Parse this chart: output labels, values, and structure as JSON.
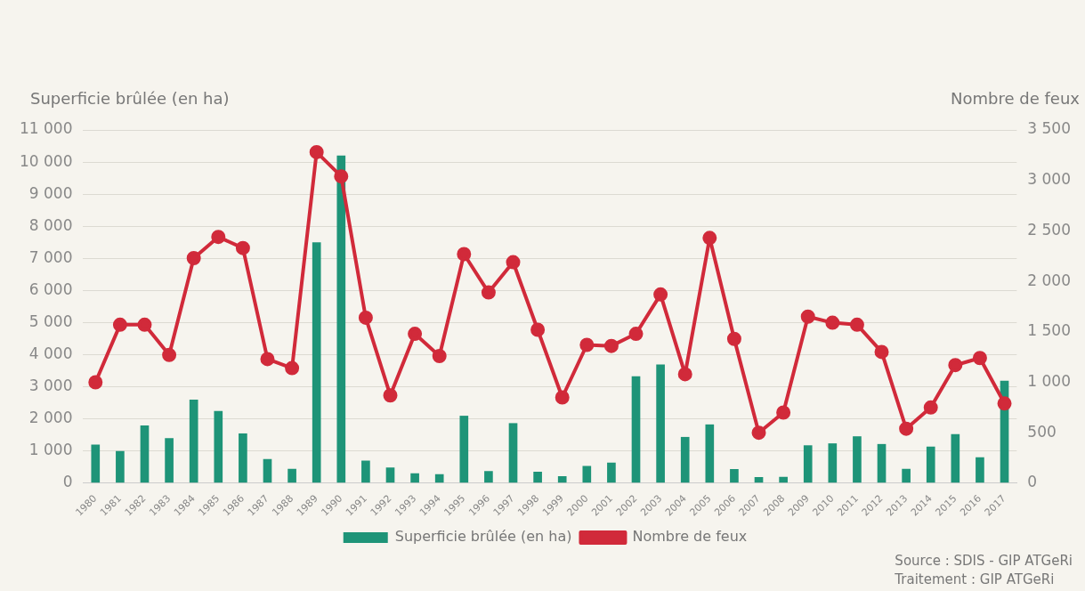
{
  "chart_data": {
    "type": "bar",
    "categories": [
      "1980",
      "1981",
      "1982",
      "1983",
      "1984",
      "1985",
      "1986",
      "1987",
      "1988",
      "1989",
      "1990",
      "1991",
      "1992",
      "1993",
      "1994",
      "1995",
      "1996",
      "1997",
      "1998",
      "1999",
      "2000",
      "2001",
      "2002",
      "2003",
      "2004",
      "2005",
      "2006",
      "2007",
      "2008",
      "2009",
      "2010",
      "2011",
      "2012",
      "2013",
      "2014",
      "2015",
      "2016",
      "2017"
    ],
    "series": [
      {
        "name": "Superficie brûlée (en ha)",
        "color": "#1e9478",
        "values": [
          1200,
          1000,
          1800,
          1400,
          2600,
          2250,
          1550,
          750,
          450,
          7500,
          10200,
          700,
          490,
          310,
          280,
          2100,
          380,
          1870,
          360,
          220,
          540,
          640,
          3330,
          3700,
          1440,
          1830,
          440,
          190,
          200,
          1180,
          1240,
          1460,
          1220,
          450,
          1140,
          1530,
          810,
          3190
        ]
      },
      {
        "name": "Nombre de feux",
        "type": "line",
        "axis": "y2",
        "color": "#d12a3a",
        "marker": "circle",
        "values": [
          1000,
          1570,
          1570,
          1270,
          2230,
          2440,
          2330,
          1230,
          1140,
          3280,
          3040,
          1640,
          870,
          1480,
          1260,
          2270,
          1890,
          2190,
          1520,
          850,
          1370,
          1360,
          1480,
          1870,
          1080,
          2430,
          1430,
          500,
          700,
          1650,
          1590,
          1570,
          1300,
          540,
          750,
          1170,
          1240,
          790
        ]
      }
    ],
    "ylabel": "Superficie brûlée (en ha)",
    "y2label": "Nombre de feux",
    "ylim": [
      0,
      11000
    ],
    "yticks": [
      0,
      {
        "value": 1000,
        "label": "1 000"
      },
      {
        "value": 2000,
        "label": "2 000"
      },
      {
        "value": 3000,
        "label": "3 000"
      },
      {
        "value": 4000,
        "label": "4 000"
      },
      {
        "value": 5000,
        "label": "5 000"
      },
      {
        "value": 6000,
        "label": "6 000"
      },
      {
        "value": 7000,
        "label": "7 000"
      },
      {
        "value": 8000,
        "label": "8 000"
      },
      {
        "value": 9000,
        "label": "9 000"
      },
      {
        "value": 10000,
        "label": "10 000"
      },
      {
        "value": 11000,
        "label": "11 000"
      }
    ],
    "y2lim": [
      0,
      3500
    ],
    "y2ticks": [
      0,
      500,
      {
        "value": 1000,
        "label": "1 000"
      },
      {
        "value": 1500,
        "label": "1 500"
      },
      {
        "value": 2000,
        "label": "2 000"
      },
      {
        "value": 2500,
        "label": "2 500"
      },
      {
        "value": 3000,
        "label": "3 000"
      },
      {
        "value": 3500,
        "label": "3 500"
      }
    ],
    "grid": "y",
    "legend": "bottom",
    "annotations": [
      "Source : SDIS - GIP ATGeRi",
      "Traitement : GIP ATGeRi"
    ]
  }
}
